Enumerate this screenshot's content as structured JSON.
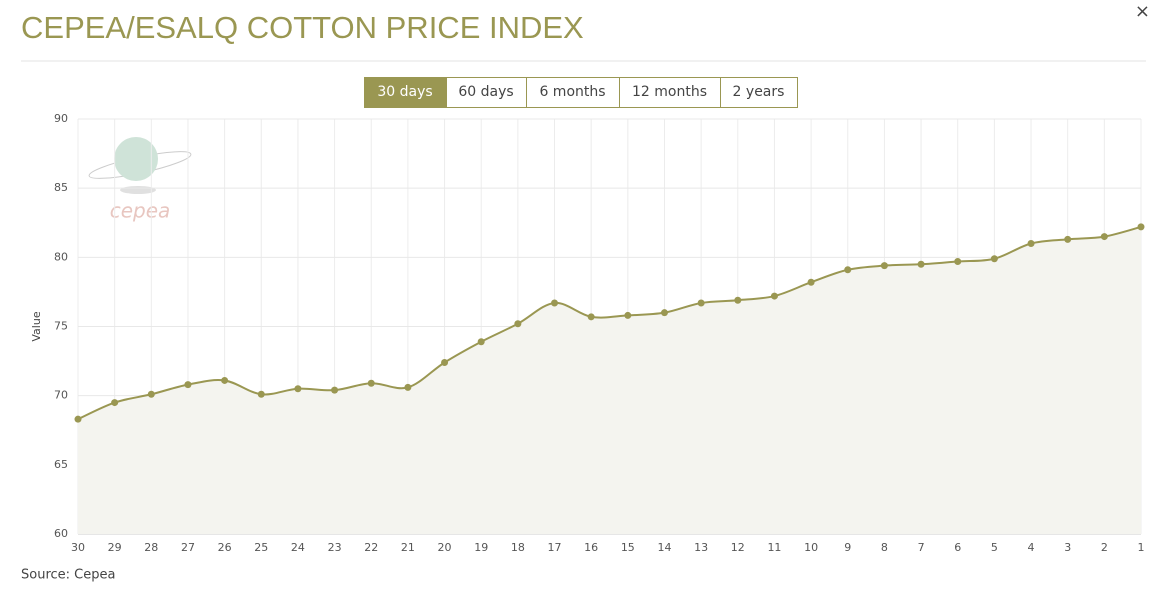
{
  "title": "CEPEA/ESALQ COTTON PRICE INDEX",
  "close": "×",
  "buttons": [
    "30 days",
    "60 days",
    "6 months",
    "12 months",
    "2 years"
  ],
  "active_button": 0,
  "logo": "cepea",
  "source": "Source: Cepea",
  "chart_data": {
    "type": "area",
    "y_label": "Value",
    "categories": [
      "30",
      "29",
      "28",
      "27",
      "26",
      "25",
      "24",
      "23",
      "22",
      "21",
      "20",
      "19",
      "18",
      "17",
      "16",
      "15",
      "14",
      "13",
      "12",
      "11",
      "10",
      "9",
      "8",
      "7",
      "6",
      "5",
      "4",
      "3",
      "2",
      "1"
    ],
    "series": [
      {
        "color": "#9a9752",
        "values": [
          68.3,
          69.5,
          70.1,
          70.8,
          71.1,
          70.1,
          70.5,
          70.4,
          70.9,
          70.6,
          72.4,
          73.9,
          75.2,
          76.7,
          75.7,
          75.8,
          76.0,
          76.7,
          76.9,
          77.2,
          78.2,
          79.1,
          79.4,
          79.5,
          79.7,
          79.9,
          81.0,
          81.3,
          81.5,
          82.2
        ]
      }
    ],
    "area_color": "#f4f4ef",
    "ylim": [
      60,
      90
    ],
    "yticks": [
      60,
      65,
      70,
      75,
      80,
      85,
      90
    ],
    "grid": true
  }
}
